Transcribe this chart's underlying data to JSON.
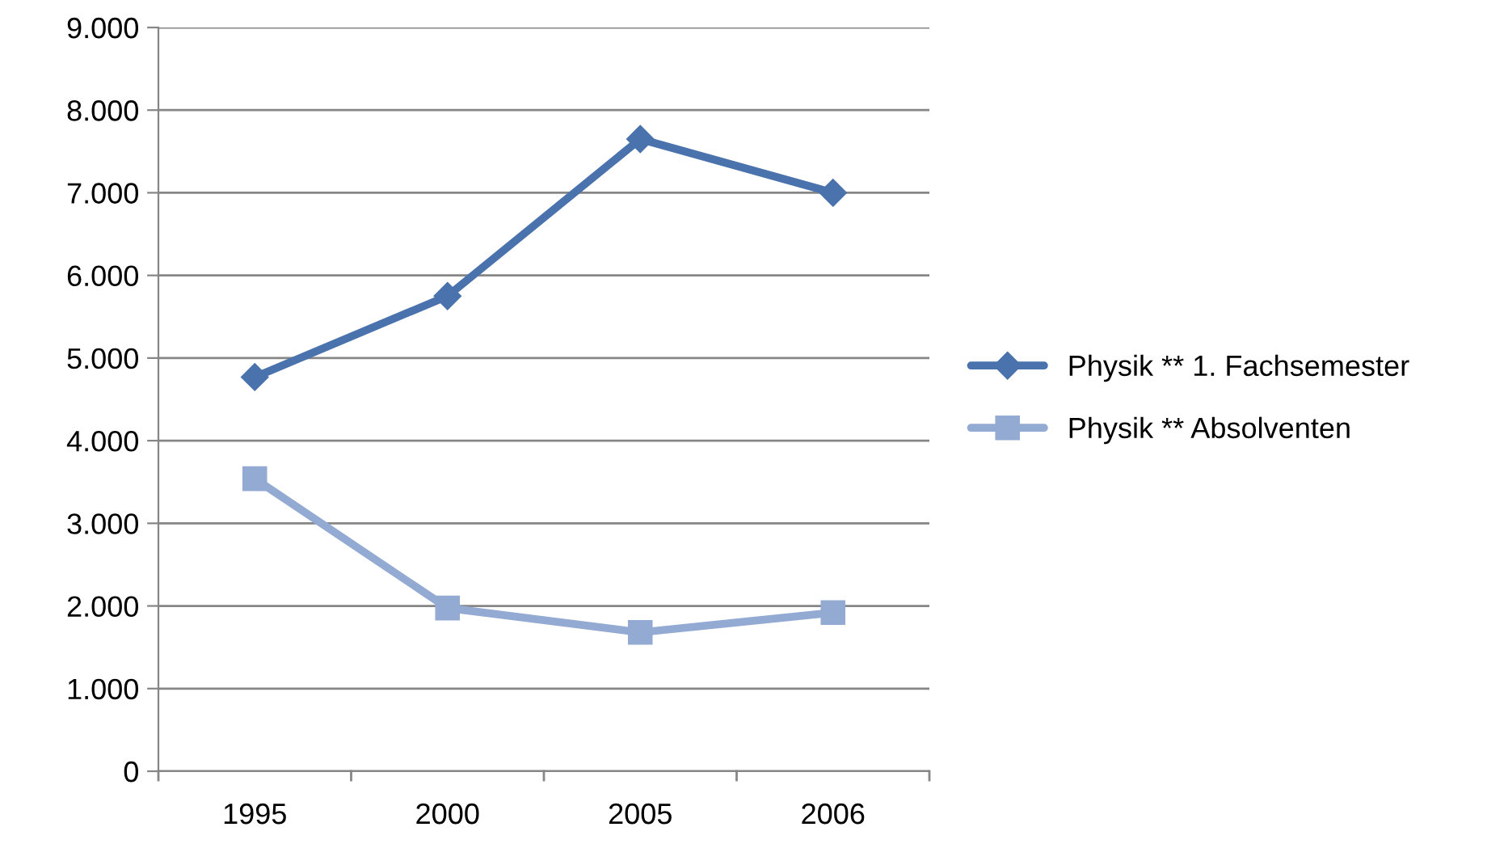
{
  "chart_data": {
    "type": "line",
    "categories": [
      "1995",
      "2000",
      "2005",
      "2006"
    ],
    "series": [
      {
        "name": "Physik ** 1. Fachsemester",
        "color": "#4a72ac",
        "values": [
          4770,
          5750,
          7650,
          7000
        ],
        "marker": "diamond"
      },
      {
        "name": "Physik ** Absolventen",
        "color": "#93aad3",
        "values": [
          3540,
          1975,
          1680,
          1920
        ],
        "marker": "square"
      }
    ],
    "ylim": [
      0,
      9000
    ],
    "yticks": [
      0,
      {
        "value": 1000,
        "label": "1.000"
      },
      {
        "value": 2000,
        "label": "2.000"
      },
      {
        "value": 3000,
        "label": "3.000"
      },
      {
        "value": 4000,
        "label": "4.000"
      },
      {
        "value": 5000,
        "label": "5.000"
      },
      {
        "value": 6000,
        "label": "6.000"
      },
      {
        "value": 7000,
        "label": "7.000"
      },
      {
        "value": 8000,
        "label": "8.000"
      },
      {
        "value": 9000,
        "label": "9.000"
      }
    ],
    "grid": "y",
    "legend": "right",
    "line_style": "solid"
  }
}
